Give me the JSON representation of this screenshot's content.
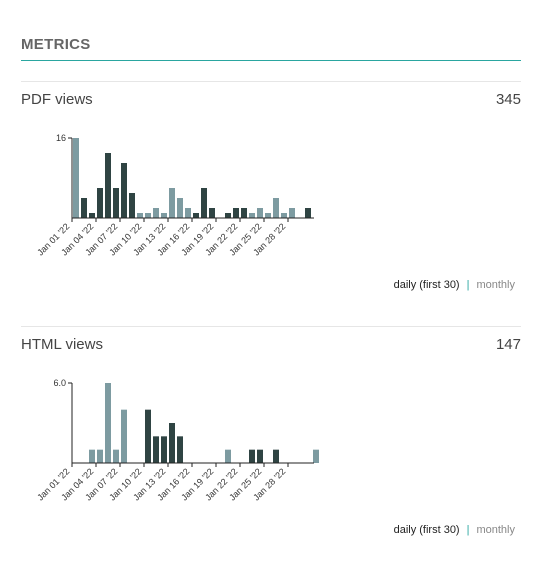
{
  "section": {
    "title": "METRICS",
    "accent_color": "#2aa6a0"
  },
  "panels": [
    {
      "title": "PDF views",
      "total": "345",
      "toggle": {
        "daily": "daily (first 30)",
        "separator": "|",
        "monthly": "monthly"
      },
      "chart_data": {
        "type": "bar",
        "y_max_label": "16",
        "ylim": [
          0,
          16
        ],
        "tick_labels": [
          "Jan 01 '22",
          "Jan 04 '22",
          "Jan 07 '22",
          "Jan 10 '22",
          "Jan 13 '22",
          "Jan 16 '22",
          "Jan 19 '22",
          "Jan 22 '22",
          "Jan 25 '22",
          "Jan 28 '22"
        ],
        "values": [
          16,
          4,
          1,
          6,
          13,
          6,
          11,
          5,
          1,
          1,
          2,
          1,
          6,
          4,
          2,
          1,
          6,
          2,
          0,
          1,
          2,
          2,
          1,
          2,
          1,
          4,
          1,
          2,
          0,
          2
        ],
        "colors": [
          "#7d9ba1",
          "#2f4443",
          "#2f4443",
          "#2f4443",
          "#2f4443",
          "#2f4443",
          "#2f4443",
          "#2f4443",
          "#7d9ba1",
          "#7d9ba1",
          "#7d9ba1",
          "#7d9ba1",
          "#7d9ba1",
          "#7d9ba1",
          "#7d9ba1",
          "#2f4443",
          "#2f4443",
          "#2f4443",
          "#2f4443",
          "#2f4443",
          "#2f4443",
          "#2f4443",
          "#7d9ba1",
          "#7d9ba1",
          "#7d9ba1",
          "#7d9ba1",
          "#7d9ba1",
          "#7d9ba1",
          "#2f4443",
          "#2f4443"
        ]
      }
    },
    {
      "title": "HTML views",
      "total": "147",
      "toggle": {
        "daily": "daily (first 30)",
        "separator": "|",
        "monthly": "monthly"
      },
      "chart_data": {
        "type": "bar",
        "y_max_label": "6.0",
        "ylim": [
          0,
          6
        ],
        "tick_labels": [
          "Jan 01 '22",
          "Jan 04 '22",
          "Jan 07 '22",
          "Jan 10 '22",
          "Jan 13 '22",
          "Jan 16 '22",
          "Jan 19 '22",
          "Jan 22 '22",
          "Jan 25 '22",
          "Jan 28 '22"
        ],
        "values": [
          0,
          0,
          1,
          1,
          6,
          1,
          4,
          0,
          0,
          4,
          2,
          2,
          3,
          2,
          0,
          0,
          0,
          0,
          0,
          1,
          0,
          0,
          1,
          1,
          0,
          1,
          0,
          0,
          0,
          0,
          1
        ],
        "colors": [
          "#7d9ba1",
          "#7d9ba1",
          "#7d9ba1",
          "#7d9ba1",
          "#7d9ba1",
          "#7d9ba1",
          "#7d9ba1",
          "#7d9ba1",
          "#2f4443",
          "#2f4443",
          "#2f4443",
          "#2f4443",
          "#2f4443",
          "#2f4443",
          "#2f4443",
          "#2f4443",
          "#2f4443",
          "#7d9ba1",
          "#7d9ba1",
          "#7d9ba1",
          "#7d9ba1",
          "#2f4443",
          "#2f4443",
          "#2f4443",
          "#2f4443",
          "#2f4443",
          "#7d9ba1",
          "#7d9ba1",
          "#7d9ba1",
          "#7d9ba1",
          "#7d9ba1"
        ]
      }
    }
  ]
}
